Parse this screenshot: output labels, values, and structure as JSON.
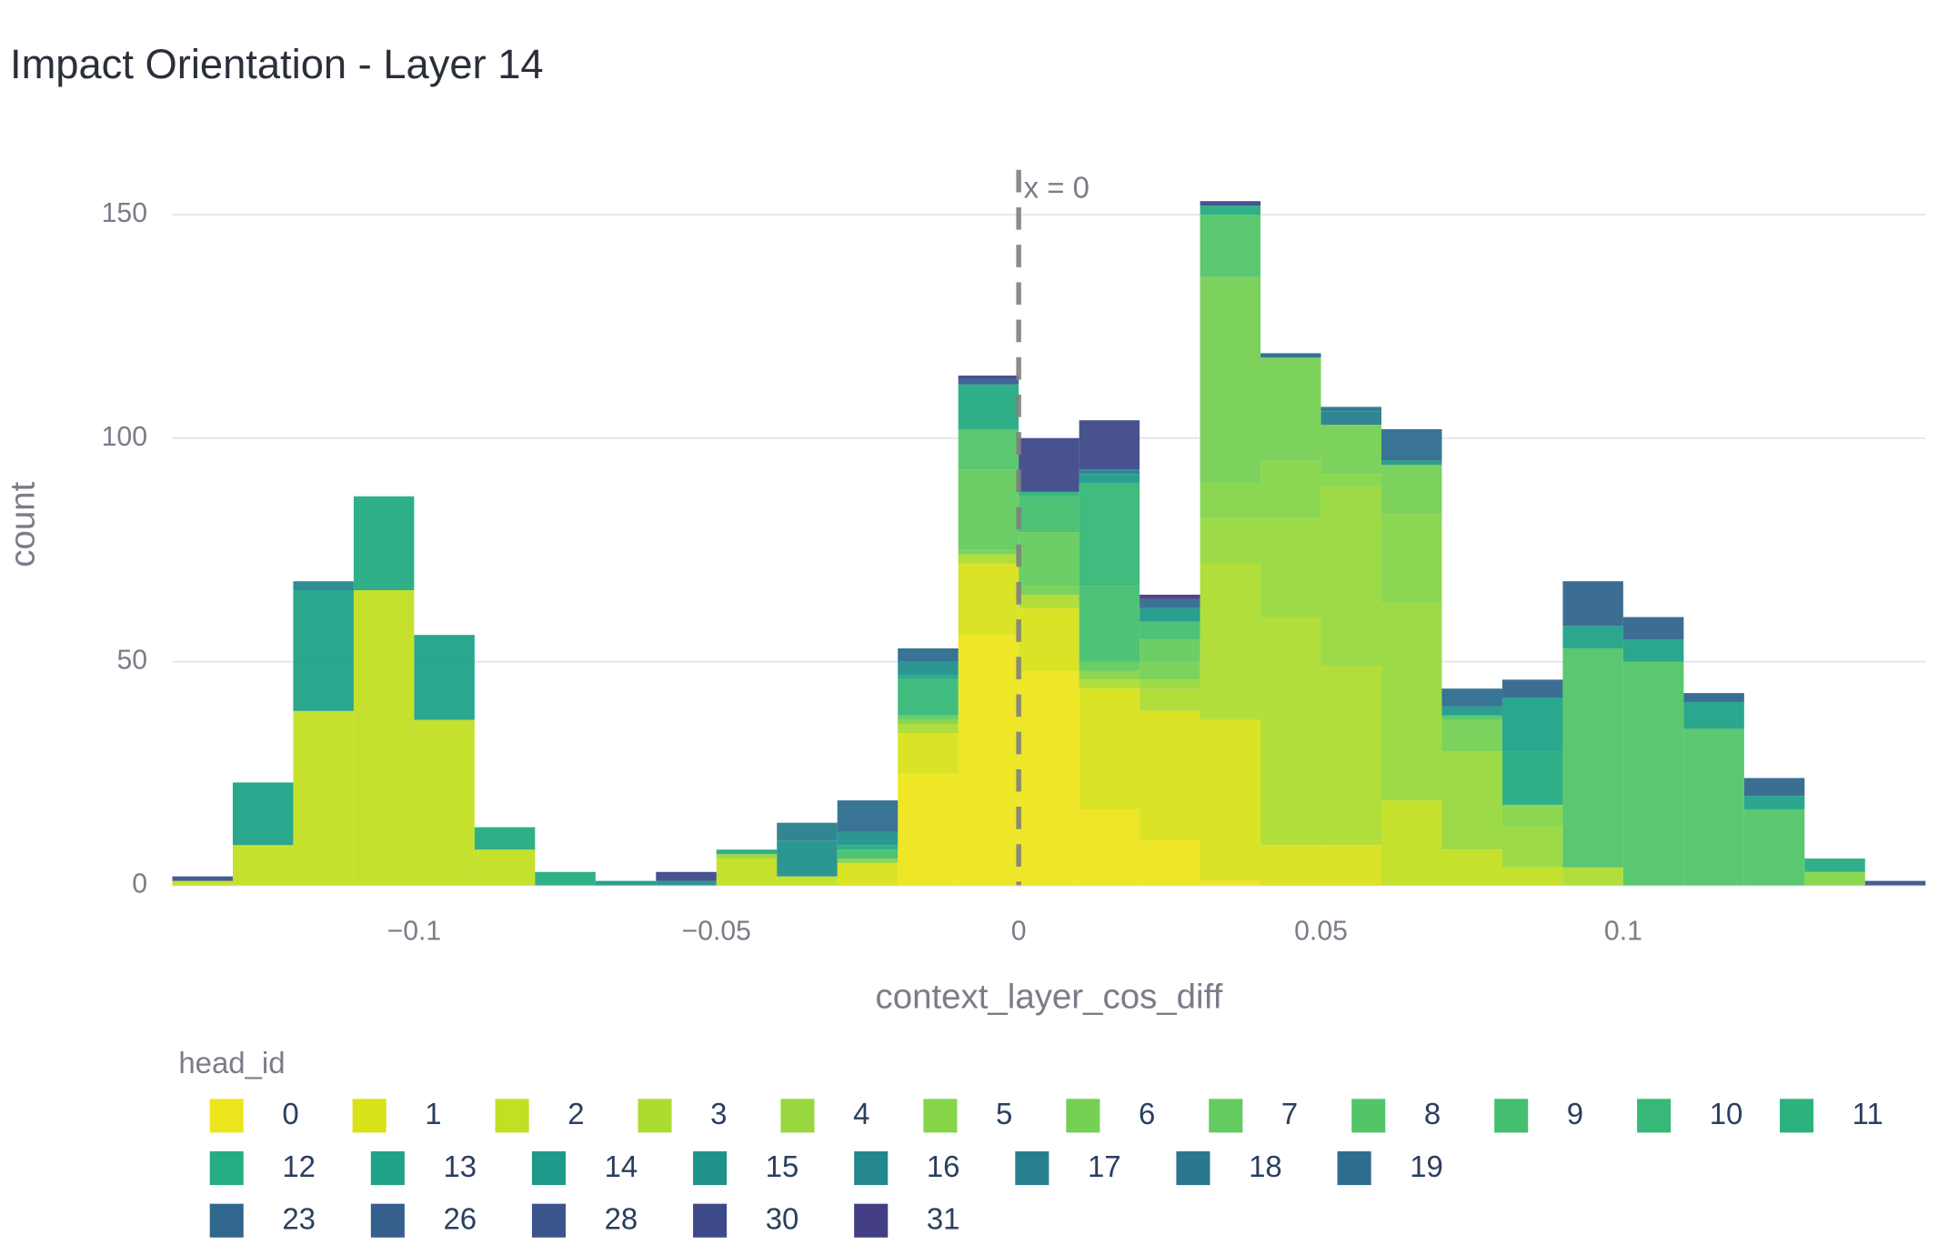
{
  "chart_data": {
    "type": "histogram",
    "title": "Impact Orientation - Layer 14",
    "x_label": "context_layer_cos_diff",
    "y_label": "count",
    "legend_title": "head_id",
    "annotation": "x = 0",
    "vline": 0,
    "bins": [
      -0.14,
      -0.13,
      -0.12,
      -0.11,
      -0.1,
      -0.09,
      -0.08,
      -0.07,
      -0.06,
      -0.05,
      -0.04,
      -0.03,
      -0.02,
      -0.01,
      0,
      0.01,
      0.02,
      0.03,
      0.04,
      0.05,
      0.06,
      0.07,
      0.08,
      0.09,
      0.1,
      0.11,
      0.12,
      0.13,
      0.14,
      0.15
    ],
    "xlim": [
      -0.14,
      0.15
    ],
    "ylim": [
      0,
      160
    ],
    "xticks": [
      {
        "value": -0.1,
        "label": "−0.1"
      },
      {
        "value": -0.05,
        "label": "−0.05"
      },
      0,
      0.05,
      0.1
    ],
    "yticks": [
      0,
      50,
      100,
      150
    ],
    "grid": true,
    "series": [
      {
        "name": "0",
        "color": "#ede51b",
        "values": [
          0,
          0,
          0,
          0,
          0,
          0,
          0,
          0,
          0,
          0,
          0,
          0,
          25,
          56,
          48,
          17,
          10,
          1,
          0,
          0,
          0,
          0,
          0,
          0,
          0,
          0,
          0,
          0,
          0
        ]
      },
      {
        "name": "1",
        "color": "#d8e219",
        "values": [
          0,
          0,
          0,
          0,
          0,
          0,
          0,
          0,
          0,
          0,
          0,
          5,
          9,
          16,
          14,
          27,
          29,
          36,
          9,
          9,
          0,
          0,
          0,
          0,
          0,
          0,
          0,
          0,
          0
        ]
      },
      {
        "name": "2",
        "color": "#c2df23",
        "values": [
          1,
          9,
          39,
          66,
          37,
          8,
          0,
          0,
          0,
          6,
          2,
          0,
          0,
          0,
          0,
          0,
          0,
          0,
          0,
          0,
          19,
          8,
          4,
          0,
          0,
          0,
          0,
          0,
          0
        ]
      },
      {
        "name": "3",
        "color": "#addc30",
        "values": [
          0,
          0,
          0,
          0,
          0,
          0,
          0,
          0,
          0,
          0,
          0,
          0,
          2,
          2,
          3,
          2,
          5,
          35,
          51,
          40,
          0,
          0,
          0,
          4,
          0,
          0,
          0,
          0,
          0
        ]
      },
      {
        "name": "4",
        "color": "#98d83e",
        "values": [
          0,
          0,
          0,
          0,
          0,
          0,
          0,
          0,
          0,
          1,
          0,
          0,
          0,
          0,
          0,
          0,
          2,
          10,
          22,
          40,
          44,
          22,
          9,
          0,
          0,
          0,
          0,
          0,
          0
        ]
      },
      {
        "name": "5",
        "color": "#86d549",
        "values": [
          0,
          0,
          0,
          0,
          0,
          0,
          0,
          0,
          0,
          0,
          0,
          1,
          1,
          0,
          0,
          2,
          0,
          8,
          13,
          3,
          20,
          0,
          5,
          0,
          0,
          0,
          0,
          3,
          0
        ]
      },
      {
        "name": "6",
        "color": "#75d054",
        "values": [
          0,
          0,
          0,
          0,
          0,
          0,
          0,
          0,
          0,
          0,
          0,
          0,
          0,
          1,
          2,
          0,
          4,
          46,
          23,
          11,
          11,
          7,
          0,
          0,
          0,
          0,
          0,
          0,
          0
        ]
      },
      {
        "name": "7",
        "color": "#63cb5f",
        "values": [
          0,
          0,
          0,
          0,
          0,
          0,
          0,
          0,
          0,
          0,
          0,
          0,
          1,
          18,
          12,
          2,
          5,
          0,
          0,
          0,
          0,
          0,
          0,
          0,
          0,
          0,
          0,
          0,
          0
        ]
      },
      {
        "name": "8",
        "color": "#52c569",
        "values": [
          0,
          0,
          0,
          0,
          0,
          0,
          0,
          0,
          0,
          0,
          0,
          0,
          0,
          9,
          0,
          0,
          0,
          14,
          0,
          0,
          0,
          1,
          0,
          49,
          50,
          35,
          17,
          0,
          0
        ]
      },
      {
        "name": "9",
        "color": "#44bf70",
        "values": [
          0,
          0,
          0,
          0,
          0,
          0,
          0,
          0,
          0,
          0,
          0,
          2,
          0,
          0,
          8,
          17,
          4,
          0,
          0,
          0,
          0,
          0,
          0,
          0,
          0,
          0,
          0,
          0,
          0
        ]
      },
      {
        "name": "10",
        "color": "#37b878",
        "values": [
          0,
          0,
          0,
          0,
          0,
          0,
          0,
          0,
          0,
          0,
          0,
          0,
          8,
          0,
          0,
          23,
          0,
          0,
          0,
          0,
          0,
          0,
          0,
          0,
          0,
          0,
          0,
          0,
          0
        ]
      },
      {
        "name": "11",
        "color": "#2db27d",
        "values": [
          0,
          0,
          0,
          0,
          0,
          0,
          0,
          0,
          0,
          0,
          0,
          0,
          0,
          0,
          1,
          0,
          0,
          0,
          0,
          0,
          0,
          0,
          0,
          0,
          0,
          0,
          0,
          0,
          0
        ]
      },
      {
        "name": "12",
        "color": "#25ac82",
        "values": [
          0,
          0,
          0,
          21,
          0,
          5,
          3,
          0,
          0,
          1,
          0,
          1,
          1,
          10,
          0,
          0,
          0,
          2,
          0,
          0,
          0,
          0,
          12,
          0,
          0,
          0,
          0,
          3,
          0
        ]
      },
      {
        "name": "13",
        "color": "#1fa287",
        "values": [
          0,
          14,
          27,
          0,
          19,
          0,
          0,
          0,
          0,
          0,
          0,
          0,
          0,
          0,
          0,
          0,
          0,
          0,
          0,
          0,
          0,
          0,
          12,
          5,
          5,
          6,
          3,
          0,
          0
        ]
      },
      {
        "name": "14",
        "color": "#1f9a8a",
        "values": [
          0,
          0,
          0,
          0,
          0,
          0,
          0,
          1,
          0,
          0,
          0,
          0,
          0,
          0,
          0,
          2,
          3,
          0,
          0,
          0,
          1,
          2,
          0,
          0,
          0,
          0,
          0,
          0,
          0
        ]
      },
      {
        "name": "15",
        "color": "#21918c",
        "values": [
          0,
          0,
          0,
          0,
          0,
          0,
          0,
          0,
          1,
          0,
          8,
          3,
          3,
          0,
          0,
          0,
          0,
          0,
          0,
          0,
          0,
          0,
          0,
          0,
          0,
          0,
          0,
          0,
          0
        ]
      },
      {
        "name": "16",
        "color": "#24878e",
        "values": [
          0,
          0,
          2,
          0,
          0,
          0,
          0,
          0,
          0,
          0,
          0,
          0,
          0,
          0,
          0,
          0,
          0,
          0,
          0,
          0,
          0,
          0,
          0,
          0,
          0,
          0,
          0,
          0,
          0
        ]
      },
      {
        "name": "17",
        "color": "#277f8e",
        "values": [
          0,
          0,
          0,
          0,
          0,
          0,
          0,
          0,
          0,
          0,
          4,
          0,
          0,
          0,
          0,
          1,
          0,
          0,
          0,
          3,
          0,
          0,
          0,
          0,
          0,
          0,
          0,
          0,
          0
        ]
      },
      {
        "name": "18",
        "color": "#2a768e",
        "values": [
          0,
          0,
          0,
          0,
          0,
          0,
          0,
          0,
          0,
          0,
          0,
          0,
          0,
          0,
          0,
          0,
          0,
          0,
          0,
          1,
          0,
          0,
          0,
          0,
          0,
          0,
          0,
          0,
          0
        ]
      },
      {
        "name": "19",
        "color": "#2e6d8e",
        "values": [
          0,
          0,
          0,
          0,
          0,
          0,
          0,
          0,
          0,
          0,
          0,
          7,
          3,
          0,
          0,
          0,
          2,
          0,
          1,
          0,
          7,
          4,
          0,
          0,
          0,
          0,
          0,
          0,
          0
        ]
      },
      {
        "name": "23",
        "color": "#31668e",
        "values": [
          0,
          0,
          0,
          0,
          0,
          0,
          0,
          0,
          0,
          0,
          0,
          0,
          0,
          0,
          0,
          0,
          0,
          0,
          0,
          0,
          0,
          0,
          4,
          10,
          5,
          2,
          4,
          0,
          0
        ]
      },
      {
        "name": "26",
        "color": "#355f8d",
        "values": [
          0,
          0,
          0,
          0,
          0,
          0,
          0,
          0,
          0,
          0,
          0,
          0,
          0,
          1,
          0,
          0,
          0,
          0,
          0,
          0,
          0,
          0,
          0,
          0,
          0,
          0,
          0,
          0,
          0
        ]
      },
      {
        "name": "28",
        "color": "#3a548c",
        "values": [
          1,
          0,
          0,
          0,
          0,
          0,
          0,
          0,
          0,
          0,
          0,
          0,
          0,
          0,
          0,
          0,
          0,
          0,
          0,
          0,
          0,
          0,
          0,
          0,
          0,
          0,
          0,
          0,
          1
        ]
      },
      {
        "name": "30",
        "color": "#3e4989",
        "values": [
          0,
          0,
          0,
          0,
          0,
          0,
          0,
          0,
          2,
          0,
          0,
          0,
          0,
          1,
          12,
          11,
          0,
          1,
          0,
          0,
          0,
          0,
          0,
          0,
          0,
          0,
          0,
          0,
          0
        ]
      },
      {
        "name": "31",
        "color": "#433d84",
        "values": [
          0,
          0,
          0,
          0,
          0,
          0,
          0,
          0,
          0,
          0,
          0,
          0,
          0,
          0,
          0,
          0,
          1,
          0,
          0,
          0,
          0,
          0,
          0,
          0,
          0,
          0,
          0,
          0,
          0
        ]
      }
    ]
  }
}
